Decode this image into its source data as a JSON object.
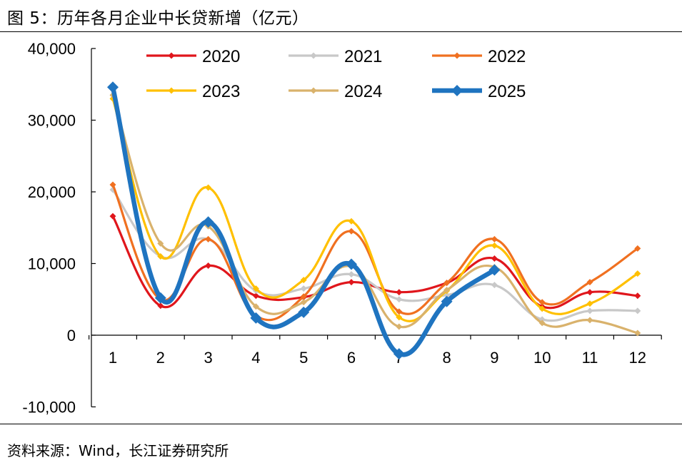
{
  "header": {
    "title": "图 5：历年各月企业中长贷新增（亿元）"
  },
  "footer": {
    "source": "资料来源：Wind，长江证券研究所"
  },
  "chart_data": {
    "type": "line",
    "title": "历年各月企业中长贷新增（亿元）",
    "xlabel": "",
    "ylabel": "",
    "ylim": [
      -10000,
      40000
    ],
    "yticks": [
      -10000,
      0,
      10000,
      20000,
      30000,
      40000
    ],
    "ytick_labels": [
      "-10,000",
      "0",
      "10,000",
      "20,000",
      "30,000",
      "40,000"
    ],
    "categories": [
      "1",
      "2",
      "3",
      "4",
      "5",
      "6",
      "7",
      "8",
      "9",
      "10",
      "11",
      "12"
    ],
    "legend": "top, 3 columns",
    "grid": false,
    "series": [
      {
        "name": "2020",
        "color": "#E0161C",
        "values": [
          16600,
          4100,
          9700,
          5500,
          5300,
          7400,
          6000,
          7300,
          10700,
          4000,
          6000,
          5500
        ]
      },
      {
        "name": "2021",
        "color": "#C8C8C8",
        "values": [
          20300,
          11000,
          13400,
          6200,
          6500,
          8500,
          5000,
          5600,
          7000,
          2200,
          3400,
          3400
        ]
      },
      {
        "name": "2022",
        "color": "#F07020",
        "values": [
          21000,
          5000,
          13400,
          2700,
          5400,
          14500,
          3300,
          7300,
          13400,
          4600,
          7400,
          12100
        ]
      },
      {
        "name": "2023",
        "color": "#FFC000",
        "values": [
          33000,
          11000,
          20600,
          6500,
          7700,
          15900,
          2500,
          6200,
          12500,
          3700,
          4400,
          8600
        ]
      },
      {
        "name": "2024",
        "color": "#D9B26C",
        "values": [
          33500,
          12800,
          15200,
          4000,
          4600,
          9600,
          1200,
          6300,
          9500,
          1700,
          2100,
          300
        ]
      },
      {
        "name": "2025",
        "color": "#1F74C0",
        "values": [
          34600,
          5200,
          15800,
          2400,
          3200,
          9900,
          -2600,
          4700,
          9100,
          null,
          null,
          null
        ]
      }
    ]
  }
}
